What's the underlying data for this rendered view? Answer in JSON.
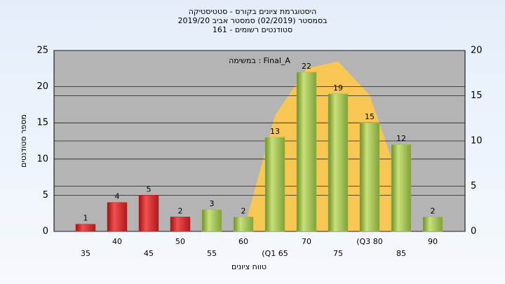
{
  "chart_data": {
    "type": "bar",
    "title": "היסטוגרמת ציונים בקורס - סטטיסטיקה",
    "subtitle": "בסמסטר  (02/2019)  סמסטר אביב 2019/20",
    "subtitle2": "סטודנטים רשומים - 161",
    "annotation": "במשימה : Final_A",
    "y_label": "מספר סטודנטים",
    "x_label": "טווח ציונים",
    "categories": [
      "35",
      "40",
      "45",
      "50",
      "55",
      "60",
      "(Q1 65",
      "70",
      "75",
      "(Q3 80",
      "85",
      "90"
    ],
    "values": [
      1,
      4,
      5,
      2,
      3,
      2,
      13,
      22,
      19,
      15,
      12,
      2
    ],
    "colors": [
      "#d42020",
      "#d42020",
      "#d42020",
      "#d42020",
      "#9cc04a",
      "#9cc04a",
      "#9cc04a",
      "#9cc04a",
      "#9cc04a",
      "#9cc04a",
      "#9cc04a",
      "#9cc04a"
    ],
    "area": {
      "color": "#ffc848",
      "axis": "y2",
      "values": [
        null,
        null,
        null,
        null,
        null,
        0,
        12.8,
        18,
        18.8,
        15.1,
        5,
        null
      ]
    },
    "ylim": [
      0,
      25
    ],
    "yticks": [
      0,
      5,
      10,
      15,
      20,
      25
    ],
    "y2lim": [
      0,
      20
    ],
    "y2ticks": [
      0,
      5,
      10,
      15,
      20
    ],
    "grid": true
  }
}
